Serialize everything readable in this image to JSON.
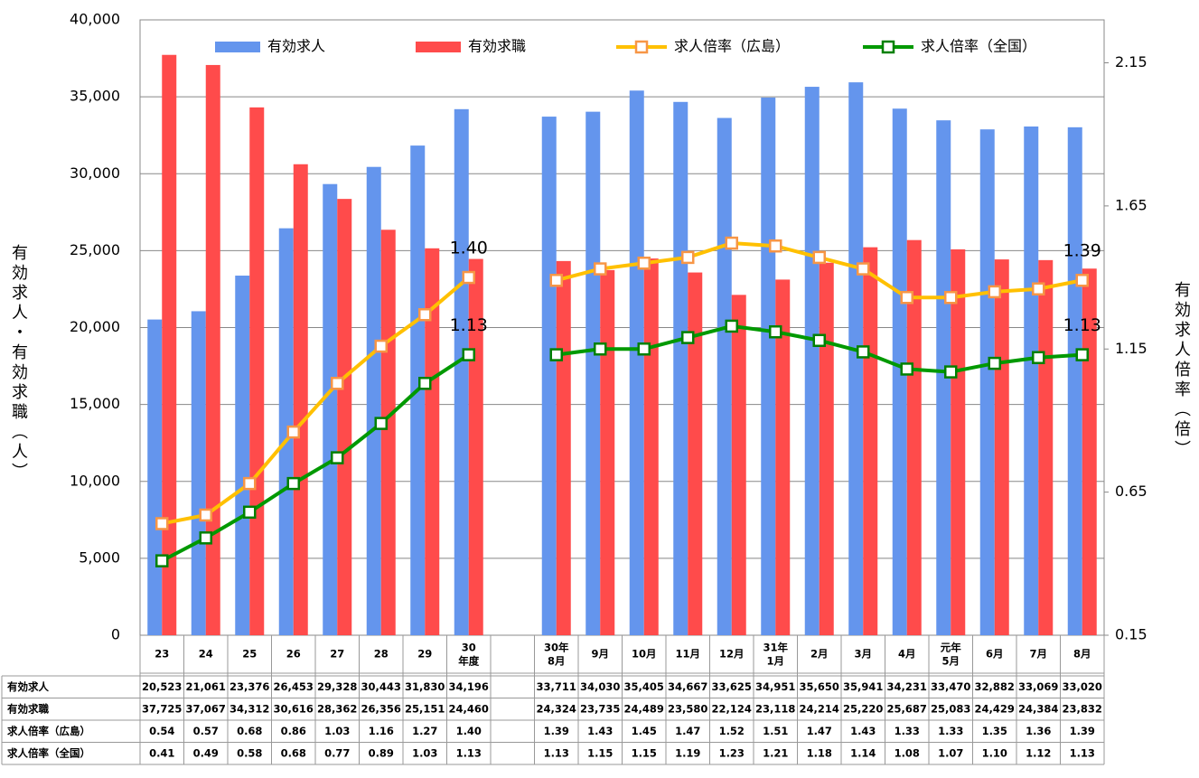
{
  "chart_data": {
    "type": "bar",
    "y_label": "有効求人・有効求職（人）",
    "y2_label": "有効求人倍率（倍）",
    "categories": [
      "23",
      "24",
      "25",
      "26",
      "27",
      "28",
      "29",
      "30\n年度",
      null,
      "30年\n8月",
      "9月",
      "10月",
      "11月",
      "12月",
      "31年\n1月",
      "2月",
      "3月",
      "4月",
      "元年\n5月",
      "6月",
      "7月",
      "8月"
    ],
    "ylim": [
      0,
      40000
    ],
    "yticks": [
      0,
      {
        "value": 5000,
        "label": "5,000"
      },
      {
        "value": 10000,
        "label": "10,000"
      },
      {
        "value": 15000,
        "label": "15,000"
      },
      {
        "value": 20000,
        "label": "20,000"
      },
      {
        "value": 25000,
        "label": "25,000"
      },
      {
        "value": 30000,
        "label": "30,000"
      },
      {
        "value": 35000,
        "label": "35,000"
      },
      {
        "value": 40000,
        "label": "40,000"
      }
    ],
    "y2lim": [
      0.15,
      2.3
    ],
    "y2ticks": [
      0.15,
      0.65,
      1.15,
      1.65,
      2.15
    ],
    "grid": true,
    "legend": "top",
    "series": [
      {
        "name": "有効求人",
        "type": "bar",
        "color": "#6495ed",
        "values": [
          20523,
          21061,
          23376,
          26453,
          29328,
          30443,
          31830,
          34196,
          null,
          33711,
          34030,
          35405,
          34667,
          33625,
          34951,
          35650,
          35941,
          34231,
          33470,
          32882,
          33069,
          33020
        ],
        "value_labels": [
          "20,523",
          "21,061",
          "23,376",
          "26,453",
          "29,328",
          "30,443",
          "31,830",
          "34,196",
          null,
          "33,711",
          "34,030",
          "35,405",
          "34,667",
          "33,625",
          "34,951",
          "35,650",
          "35,941",
          "34,231",
          "33,470",
          "32,882",
          "33,069",
          "33,020"
        ]
      },
      {
        "name": "有効求職",
        "type": "bar",
        "color": "#ff4b4b",
        "values": [
          37725,
          37067,
          34312,
          30616,
          28362,
          26356,
          25151,
          24460,
          null,
          24324,
          23735,
          24489,
          23580,
          22124,
          23118,
          24214,
          25220,
          25687,
          25083,
          24429,
          24384,
          23832
        ],
        "value_labels": [
          "37,725",
          "37,067",
          "34,312",
          "30,616",
          "28,362",
          "26,356",
          "25,151",
          "24,460",
          null,
          "24,324",
          "23,735",
          "24,489",
          "23,580",
          "22,124",
          "23,118",
          "24,214",
          "25,220",
          "25,687",
          "25,083",
          "24,429",
          "24,384",
          "23,832"
        ]
      },
      {
        "name": "求人倍率（広島）",
        "type": "line",
        "axis": "y2",
        "color": "#ffc000",
        "marker_edge": "#f79646",
        "values": [
          0.54,
          0.57,
          0.68,
          0.86,
          1.03,
          1.16,
          1.27,
          1.4,
          null,
          1.39,
          1.43,
          1.45,
          1.47,
          1.52,
          1.51,
          1.47,
          1.43,
          1.33,
          1.33,
          1.35,
          1.36,
          1.39
        ],
        "value_labels": [
          "0.54",
          "0.57",
          "0.68",
          "0.86",
          "1.03",
          "1.16",
          "1.27",
          "1.40",
          null,
          "1.39",
          "1.43",
          "1.45",
          "1.47",
          "1.52",
          "1.51",
          "1.47",
          "1.43",
          "1.33",
          "1.33",
          "1.35",
          "1.36",
          "1.39"
        ]
      },
      {
        "name": "求人倍率（全国）",
        "type": "line",
        "axis": "y2",
        "color": "#009900",
        "marker_edge": "#008000",
        "values": [
          0.41,
          0.49,
          0.58,
          0.68,
          0.77,
          0.89,
          1.03,
          1.13,
          null,
          1.13,
          1.15,
          1.15,
          1.19,
          1.23,
          1.21,
          1.18,
          1.14,
          1.08,
          1.07,
          1.1,
          1.12,
          1.13
        ],
        "value_labels": [
          "0.41",
          "0.49",
          "0.58",
          "0.68",
          "0.77",
          "0.89",
          "1.03",
          "1.13",
          null,
          "1.13",
          "1.15",
          "1.15",
          "1.19",
          "1.23",
          "1.21",
          "1.18",
          "1.14",
          "1.08",
          "1.07",
          "1.10",
          "1.12",
          "1.13"
        ]
      }
    ]
  }
}
